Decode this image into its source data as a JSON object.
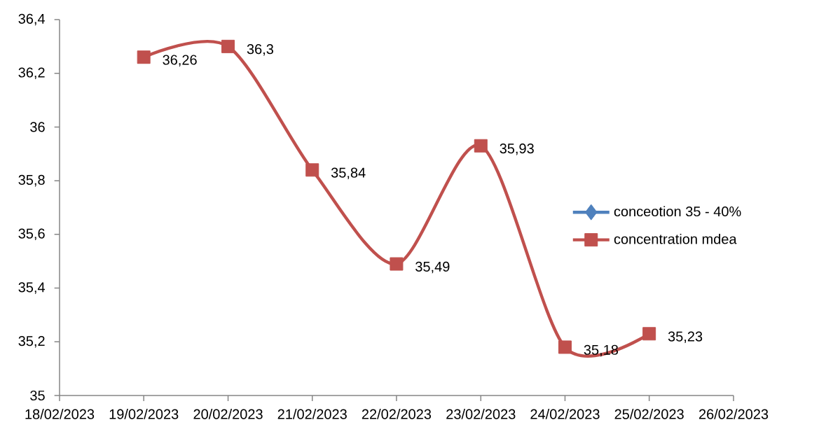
{
  "chart_data": {
    "type": "line",
    "x": [
      "2023-02-19",
      "2023-02-20",
      "2023-02-21",
      "2023-02-22",
      "2023-02-23",
      "2023-02-24",
      "2023-02-25"
    ],
    "xlim": [
      "2023-02-18",
      "2023-02-26"
    ],
    "xticks": [
      {
        "value": "2023-02-18",
        "label": "18/02/2023"
      },
      {
        "value": "2023-02-19",
        "label": "19/02/2023"
      },
      {
        "value": "2023-02-20",
        "label": "20/02/2023"
      },
      {
        "value": "2023-02-21",
        "label": "21/02/2023"
      },
      {
        "value": "2023-02-22",
        "label": "22/02/2023"
      },
      {
        "value": "2023-02-23",
        "label": "23/02/2023"
      },
      {
        "value": "2023-02-24",
        "label": "24/02/2023"
      },
      {
        "value": "2023-02-25",
        "label": "25/02/2023"
      },
      {
        "value": "2023-02-26",
        "label": "26/02/2023"
      }
    ],
    "ylim": [
      35,
      36.4
    ],
    "yticks": [
      35,
      {
        "value": 35.2,
        "label": "35,2"
      },
      {
        "value": 35.4,
        "label": "35,4"
      },
      {
        "value": 35.6,
        "label": "35,6"
      },
      {
        "value": 35.8,
        "label": "35,8"
      },
      36,
      {
        "value": 36.2,
        "label": "36,2"
      },
      {
        "value": 36.4,
        "label": "36,4"
      }
    ],
    "series": [
      {
        "name": "conceotion 35 - 40%",
        "color": "#4f81bd",
        "marker": "diamond",
        "values": [
          null,
          null,
          null,
          null,
          null,
          null,
          null
        ]
      },
      {
        "name": "concentration  mdea",
        "color": "#c0504d",
        "marker": "square",
        "values": [
          36.26,
          36.3,
          35.84,
          35.49,
          35.93,
          35.18,
          35.23
        ],
        "value_labels": [
          "36,26",
          "36,3",
          "35,84",
          "35,49",
          "35,93",
          "35,18",
          "35,23"
        ]
      }
    ],
    "legend": "right",
    "grid": false,
    "line_style": "solid"
  }
}
